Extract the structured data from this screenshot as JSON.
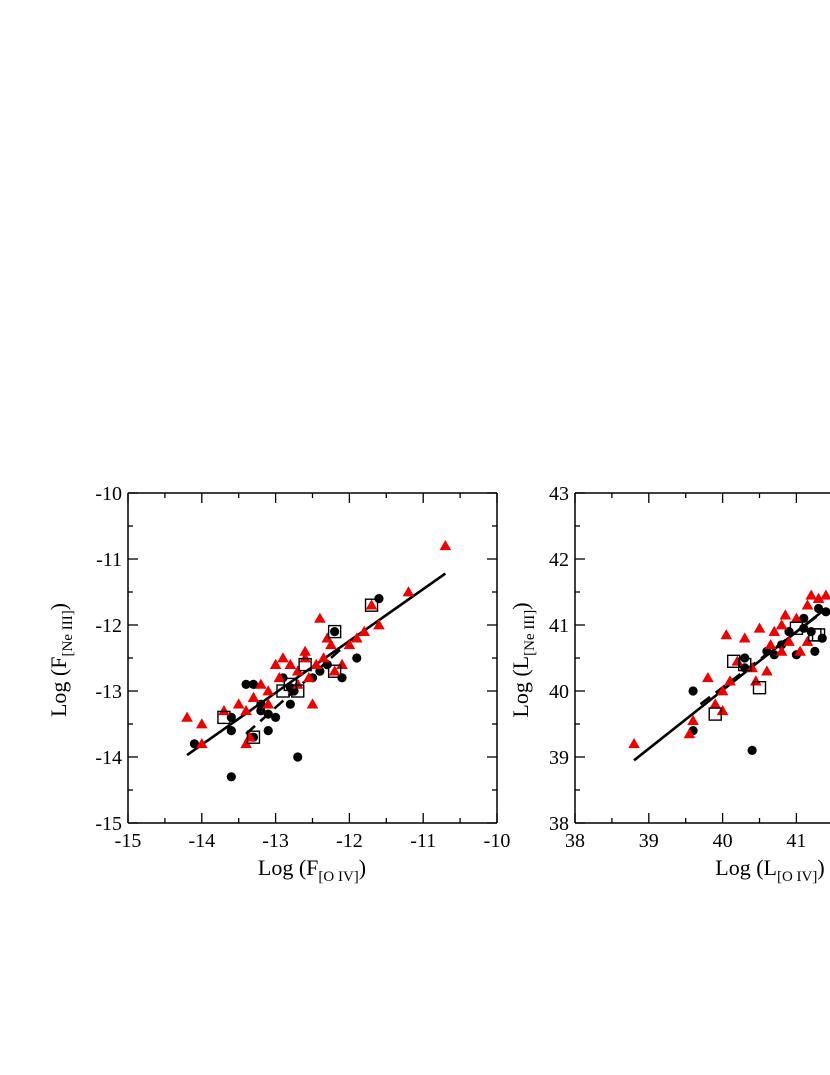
{
  "chart_data": [
    {
      "type": "scatter",
      "xlabel": "Log (F",
      "xlabel_sub": "[O IV]",
      "xlabel_close": ")",
      "ylabel": "Log (F",
      "ylabel_sub": "[Ne III]",
      "ylabel_close": ")",
      "xlim": [
        -15,
        -10
      ],
      "ylim": [
        -15,
        -10
      ],
      "x_ticks": [
        -15,
        -14,
        -13,
        -12,
        -11,
        -10
      ],
      "x_tick_labels": [
        "-15",
        "-14",
        "-13",
        "-12",
        "-11",
        "-10"
      ],
      "y_ticks": [
        -15,
        -14,
        -13,
        -12,
        -11,
        -10
      ],
      "y_tick_labels": [
        "-15",
        "-14",
        "-13",
        "-12",
        "-11",
        "-10"
      ],
      "grid": false,
      "colors": {
        "circles": "#000000",
        "triangles": "#ee0000",
        "squares": "#000000",
        "lines": "#000000"
      },
      "series": [
        {
          "marker": "circle",
          "points": [
            [
              -14.1,
              -13.8
            ],
            [
              -13.6,
              -13.4
            ],
            [
              -13.6,
              -13.6
            ],
            [
              -13.6,
              -14.3
            ],
            [
              -13.4,
              -12.9
            ],
            [
              -13.3,
              -12.9
            ],
            [
              -13.2,
              -13.2
            ],
            [
              -13.1,
              -13.35
            ],
            [
              -13.2,
              -13.3
            ],
            [
              -13.0,
              -13.4
            ],
            [
              -13.1,
              -13.6
            ],
            [
              -12.9,
              -12.8
            ],
            [
              -12.8,
              -12.95
            ],
            [
              -12.8,
              -13.2
            ],
            [
              -12.7,
              -14.0
            ],
            [
              -12.5,
              -12.8
            ],
            [
              -12.4,
              -12.7
            ],
            [
              -12.3,
              -12.6
            ],
            [
              -12.2,
              -12.1
            ],
            [
              -12.1,
              -12.8
            ],
            [
              -11.9,
              -12.5
            ],
            [
              -11.6,
              -11.6
            ],
            [
              -13.3,
              -13.7
            ],
            [
              -12.75,
              -13.0
            ]
          ]
        },
        {
          "marker": "triangle",
          "points": [
            [
              -14.2,
              -13.4
            ],
            [
              -14.0,
              -13.5
            ],
            [
              -14.0,
              -13.8
            ],
            [
              -13.7,
              -13.3
            ],
            [
              -13.5,
              -13.2
            ],
            [
              -13.4,
              -13.3
            ],
            [
              -13.4,
              -13.8
            ],
            [
              -13.35,
              -13.7
            ],
            [
              -13.3,
              -13.1
            ],
            [
              -13.2,
              -12.9
            ],
            [
              -13.1,
              -13.0
            ],
            [
              -13.1,
              -13.2
            ],
            [
              -13.0,
              -12.6
            ],
            [
              -12.9,
              -12.5
            ],
            [
              -12.95,
              -12.8
            ],
            [
              -12.8,
              -12.6
            ],
            [
              -12.7,
              -12.7
            ],
            [
              -12.7,
              -12.9
            ],
            [
              -12.6,
              -12.5
            ],
            [
              -12.55,
              -12.8
            ],
            [
              -12.5,
              -13.2
            ],
            [
              -12.45,
              -12.6
            ],
            [
              -12.4,
              -11.9
            ],
            [
              -12.35,
              -12.5
            ],
            [
              -12.3,
              -12.2
            ],
            [
              -12.25,
              -12.3
            ],
            [
              -12.2,
              -12.7
            ],
            [
              -12.0,
              -12.3
            ],
            [
              -11.9,
              -12.2
            ],
            [
              -11.8,
              -12.1
            ],
            [
              -11.7,
              -11.7
            ],
            [
              -11.6,
              -12.0
            ],
            [
              -11.2,
              -11.5
            ],
            [
              -10.7,
              -10.8
            ],
            [
              -12.1,
              -12.6
            ],
            [
              -12.6,
              -12.4
            ]
          ]
        },
        {
          "marker": "square",
          "points": [
            [
              -13.7,
              -13.4
            ],
            [
              -13.3,
              -13.7
            ],
            [
              -12.9,
              -13.0
            ],
            [
              -12.8,
              -12.9
            ],
            [
              -12.7,
              -13.0
            ],
            [
              -12.6,
              -12.6
            ],
            [
              -12.2,
              -12.1
            ],
            [
              -12.2,
              -12.7
            ],
            [
              -11.7,
              -11.7
            ]
          ]
        }
      ],
      "fits": [
        {
          "style": "solid",
          "from": [
            -14.2,
            -13.97
          ],
          "to": [
            -10.7,
            -11.22
          ]
        },
        {
          "style": "dashed",
          "from": [
            -13.4,
            -13.65
          ],
          "to": [
            -12.1,
            -12.35
          ]
        }
      ]
    },
    {
      "type": "scatter",
      "xlabel": "Log (L",
      "xlabel_sub": "[O IV]",
      "xlabel_close": ")",
      "ylabel": "Log (L",
      "ylabel_sub": "[Ne III]",
      "ylabel_close": ")",
      "xlim": [
        38,
        43
      ],
      "ylim": [
        38,
        43
      ],
      "x_ticks": [
        38,
        39,
        40,
        41
      ],
      "x_tick_labels": [
        "38",
        "39",
        "40",
        "41"
      ],
      "y_ticks": [
        38,
        39,
        40,
        41,
        42,
        43
      ],
      "y_tick_labels": [
        "38",
        "39",
        "40",
        "41",
        "42",
        "43"
      ],
      "grid": false,
      "colors": {
        "circles": "#000000",
        "triangles": "#ee0000",
        "squares": "#000000",
        "lines": "#000000"
      },
      "series": [
        {
          "marker": "circle",
          "points": [
            [
              39.6,
              40.0
            ],
            [
              39.6,
              39.4
            ],
            [
              40.3,
              40.5
            ],
            [
              40.3,
              40.35
            ],
            [
              40.4,
              39.1
            ],
            [
              40.6,
              40.6
            ],
            [
              40.7,
              40.55
            ],
            [
              40.8,
              40.7
            ],
            [
              40.9,
              40.9
            ],
            [
              41.0,
              40.55
            ],
            [
              41.1,
              41.1
            ],
            [
              41.2,
              40.9
            ],
            [
              41.25,
              40.6
            ],
            [
              41.3,
              41.25
            ],
            [
              41.35,
              40.8
            ],
            [
              41.4,
              41.2
            ],
            [
              41.1,
              40.95
            ]
          ]
        },
        {
          "marker": "triangle",
          "points": [
            [
              38.8,
              39.2
            ],
            [
              39.55,
              39.35
            ],
            [
              39.6,
              39.55
            ],
            [
              39.8,
              40.2
            ],
            [
              39.9,
              39.8
            ],
            [
              40.0,
              40.0
            ],
            [
              40.0,
              39.7
            ],
            [
              40.05,
              40.85
            ],
            [
              40.1,
              40.15
            ],
            [
              40.2,
              40.45
            ],
            [
              40.3,
              40.8
            ],
            [
              40.4,
              40.35
            ],
            [
              40.45,
              40.15
            ],
            [
              40.5,
              40.95
            ],
            [
              40.6,
              40.3
            ],
            [
              40.65,
              40.7
            ],
            [
              40.7,
              40.9
            ],
            [
              40.8,
              41.0
            ],
            [
              40.85,
              41.15
            ],
            [
              40.9,
              40.75
            ],
            [
              41.0,
              41.1
            ],
            [
              41.05,
              40.6
            ],
            [
              41.15,
              41.3
            ],
            [
              41.2,
              41.45
            ],
            [
              41.3,
              41.4
            ],
            [
              41.4,
              41.45
            ],
            [
              40.8,
              40.6
            ],
            [
              41.15,
              40.75
            ]
          ]
        },
        {
          "marker": "square",
          "points": [
            [
              39.9,
              39.65
            ],
            [
              40.15,
              40.45
            ],
            [
              40.3,
              40.4
            ],
            [
              40.5,
              40.05
            ],
            [
              41.0,
              40.95
            ],
            [
              41.25,
              40.85
            ],
            [
              41.3,
              40.85
            ]
          ]
        }
      ],
      "fits": [
        {
          "style": "solid",
          "from": [
            38.8,
            38.95
          ],
          "to": [
            41.4,
            41.25
          ]
        },
        {
          "style": "dashed",
          "from": [
            39.7,
            39.8
          ],
          "to": [
            41.3,
            41.15
          ]
        }
      ]
    }
  ]
}
